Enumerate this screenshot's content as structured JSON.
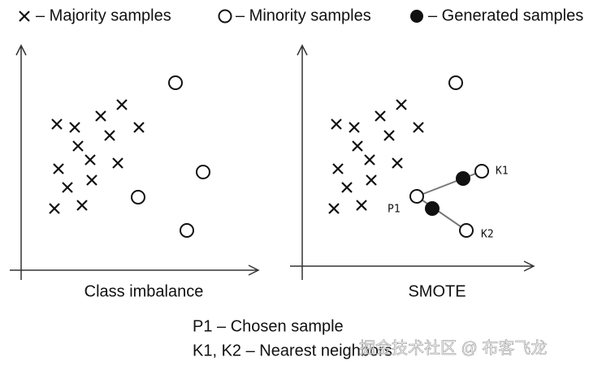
{
  "legend": {
    "majority": "– Majority samples",
    "minority": "– Minority samples",
    "generated": "– Generated samples"
  },
  "panels": [
    {
      "label": "Class imbalance"
    },
    {
      "label": "SMOTE",
      "points": {
        "chosen": "P1",
        "neighbor1": "K1",
        "neighbor2": "K2"
      }
    }
  ],
  "notes": [
    "P1 – Chosen sample",
    "K1, K2 – Nearest neighbors"
  ],
  "watermark": "掘金技术社区 @ 布客飞龙"
}
